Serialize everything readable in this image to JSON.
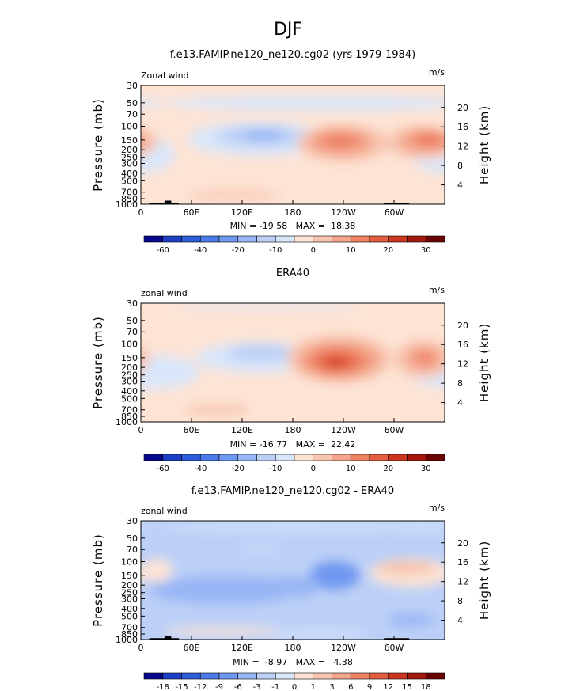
{
  "chart_data": {
    "figure_title": "DJF",
    "palettes": {
      "full": [
        "#08088a",
        "#1c3fc4",
        "#2e5ddb",
        "#4a7be8",
        "#6f98f0",
        "#98b6f5",
        "#bcd0f7",
        "#d9e6fa",
        "#fde4d5",
        "#f8c6b0",
        "#f4a68c",
        "#ee8263",
        "#e35e3e",
        "#cc3620",
        "#a4180e",
        "#6a0404"
      ],
      "diff": [
        "#08088a",
        "#1c3fc4",
        "#2e5ddb",
        "#4a7be8",
        "#6f98f0",
        "#98b6f5",
        "#bcd0f7",
        "#d9e6fa",
        "#fde4d5",
        "#f8c6b0",
        "#f4a68c",
        "#ee8263",
        "#e35e3e",
        "#cc3620",
        "#a4180e",
        "#6a0404"
      ]
    },
    "panels": [
      {
        "type": "heatmap",
        "title": "f.e13.FAMIP.ne120_ne120.cg02 (yrs 1979-1984)",
        "left_label": "Zonal wind",
        "units": "m/s",
        "ylabel": "Pressure (mb)",
        "y2label": "Height (km)",
        "x_ticks": [
          "0",
          "60E",
          "120E",
          "180",
          "120W",
          "60W"
        ],
        "x_tick_values": [
          0,
          60,
          120,
          180,
          240,
          300
        ],
        "xlim": [
          0,
          360
        ],
        "y_ticks": [
          "30",
          "50",
          "70",
          "100",
          "150",
          "200",
          "250",
          "300",
          "400",
          "500",
          "700",
          "850",
          "1000"
        ],
        "y_tick_values": [
          30,
          50,
          70,
          100,
          150,
          200,
          250,
          300,
          400,
          500,
          700,
          850,
          1000
        ],
        "ylim": [
          30,
          1000
        ],
        "height_ticks": [
          "20",
          "16",
          "12",
          "8",
          "4"
        ],
        "height_tick_values": [
          20,
          16,
          12,
          8,
          4
        ],
        "stats": "MIN = -19.58   MAX =  18.38",
        "min": -19.58,
        "max": 18.38,
        "colorbar_labels": [
          "-60",
          "-40",
          "-20",
          "-10",
          "0",
          "10",
          "20",
          "30"
        ],
        "colorbar_label_at": [
          1,
          3,
          5,
          7,
          9,
          11,
          13,
          15
        ],
        "palette": "full",
        "background_level": 8,
        "features": [
          {
            "lon": 0,
            "p": 230,
            "rlon": 40,
            "rlogp": 0.55,
            "level": 7
          },
          {
            "lon": 140,
            "p": 145,
            "rlon": 85,
            "rlogp": 0.5,
            "level": 7
          },
          {
            "lon": 142,
            "p": 135,
            "rlon": 52,
            "rlogp": 0.3,
            "level": 6
          },
          {
            "lon": 145,
            "p": 130,
            "rlon": 26,
            "rlogp": 0.16,
            "level": 5
          },
          {
            "lon": 210,
            "p": 50,
            "rlon": 180,
            "rlogp": 0.22,
            "level": 7
          },
          {
            "lon": 240,
            "p": 165,
            "rlon": 55,
            "rlogp": 0.55,
            "level": 9
          },
          {
            "lon": 237,
            "p": 160,
            "rlon": 40,
            "rlogp": 0.4,
            "level": 10
          },
          {
            "lon": 236,
            "p": 155,
            "rlon": 25,
            "rlogp": 0.22,
            "level": 11
          },
          {
            "lon": 335,
            "p": 160,
            "rlon": 45,
            "rlogp": 0.5,
            "level": 9
          },
          {
            "lon": 337,
            "p": 155,
            "rlon": 32,
            "rlogp": 0.35,
            "level": 10
          },
          {
            "lon": 340,
            "p": 150,
            "rlon": 20,
            "rlogp": 0.2,
            "level": 11
          },
          {
            "lon": 344,
            "p": 150,
            "rlon": 8,
            "rlogp": 0.08,
            "level": 12
          },
          {
            "lon": 110,
            "p": 760,
            "rlon": 55,
            "rlogp": 0.12,
            "level": 9
          }
        ],
        "topography": [
          {
            "lon0": 10,
            "lon1": 45,
            "p": 960
          },
          {
            "lon0": 28,
            "lon1": 36,
            "p": 900
          },
          {
            "lon0": 288,
            "lon1": 318,
            "p": 960
          }
        ]
      },
      {
        "type": "heatmap",
        "title": "ERA40",
        "left_label": "zonal wind",
        "units": "m/s",
        "ylabel": "Pressure (mb)",
        "y2label": "Height (km)",
        "x_ticks": [
          "0",
          "60E",
          "120E",
          "180",
          "120W",
          "60W"
        ],
        "x_tick_values": [
          0,
          60,
          120,
          180,
          240,
          300
        ],
        "xlim": [
          0,
          360
        ],
        "y_ticks": [
          "30",
          "50",
          "70",
          "100",
          "150",
          "200",
          "250",
          "300",
          "400",
          "500",
          "700",
          "850",
          "1000"
        ],
        "y_tick_values": [
          30,
          50,
          70,
          100,
          150,
          200,
          250,
          300,
          400,
          500,
          700,
          850,
          1000
        ],
        "ylim": [
          30,
          1000
        ],
        "height_ticks": [
          "20",
          "16",
          "12",
          "8",
          "4"
        ],
        "height_tick_values": [
          20,
          16,
          12,
          8,
          4
        ],
        "stats": "MIN = -16.77   MAX =  22.42",
        "min": -16.77,
        "max": 22.42,
        "colorbar_labels": [
          "-60",
          "-40",
          "-20",
          "-10",
          "0",
          "10",
          "20",
          "30"
        ],
        "colorbar_label_at": [
          1,
          3,
          5,
          7,
          9,
          11,
          13,
          15
        ],
        "palette": "full",
        "background_level": 8,
        "features": [
          {
            "lon": 15,
            "p": 230,
            "rlon": 55,
            "rlogp": 0.5,
            "level": 7
          },
          {
            "lon": 140,
            "p": 150,
            "rlon": 75,
            "rlogp": 0.45,
            "level": 7
          },
          {
            "lon": 142,
            "p": 130,
            "rlon": 40,
            "rlogp": 0.25,
            "level": 6
          },
          {
            "lon": 150,
            "p": 32,
            "rlon": 110,
            "rlogp": 0.08,
            "level": 7
          },
          {
            "lon": 235,
            "p": 155,
            "rlon": 62,
            "rlogp": 0.72,
            "level": 9
          },
          {
            "lon": 235,
            "p": 160,
            "rlon": 50,
            "rlogp": 0.55,
            "level": 10
          },
          {
            "lon": 233,
            "p": 165,
            "rlon": 36,
            "rlogp": 0.4,
            "level": 11
          },
          {
            "lon": 232,
            "p": 170,
            "rlon": 22,
            "rlogp": 0.25,
            "level": 12
          },
          {
            "lon": 231,
            "p": 172,
            "rlon": 9,
            "rlogp": 0.12,
            "level": 13
          },
          {
            "lon": 335,
            "p": 155,
            "rlon": 35,
            "rlogp": 0.55,
            "level": 9
          },
          {
            "lon": 335,
            "p": 155,
            "rlon": 22,
            "rlogp": 0.38,
            "level": 10
          },
          {
            "lon": 337,
            "p": 150,
            "rlon": 10,
            "rlogp": 0.18,
            "level": 11
          },
          {
            "lon": 90,
            "p": 700,
            "rlon": 40,
            "rlogp": 0.15,
            "level": 9
          }
        ],
        "topography": []
      },
      {
        "type": "heatmap",
        "title": "f.e13.FAMIP.ne120_ne120.cg02 - ERA40",
        "left_label": "zonal wind",
        "units": "m/s",
        "ylabel": "Pressure (mb)",
        "y2label": "Height (km)",
        "x_ticks": [
          "0",
          "60E",
          "120E",
          "180",
          "120W",
          "60W"
        ],
        "x_tick_values": [
          0,
          60,
          120,
          180,
          240,
          300
        ],
        "xlim": [
          0,
          360
        ],
        "y_ticks": [
          "30",
          "50",
          "70",
          "100",
          "150",
          "200",
          "250",
          "300",
          "400",
          "500",
          "700",
          "850",
          "1000"
        ],
        "y_tick_values": [
          30,
          50,
          70,
          100,
          150,
          200,
          250,
          300,
          400,
          500,
          700,
          850,
          1000
        ],
        "ylim": [
          30,
          1000
        ],
        "height_ticks": [
          "20",
          "16",
          "12",
          "8",
          "4"
        ],
        "height_tick_values": [
          20,
          16,
          12,
          8,
          4
        ],
        "stats": "MIN =  -8.97   MAX =   4.38",
        "min": -8.97,
        "max": 4.38,
        "colorbar_labels": [
          "-18",
          "-15",
          "-12",
          "-9",
          "-6",
          "-3",
          "-1",
          "0",
          "1",
          "3",
          "6",
          "9",
          "12",
          "15",
          "18"
        ],
        "colorbar_label_at": [
          1,
          2,
          3,
          4,
          5,
          6,
          7,
          8,
          9,
          10,
          11,
          12,
          13,
          14,
          15
        ],
        "palette": "diff",
        "background_level": 6,
        "features": [
          {
            "lon": 180,
            "p": 36,
            "rlon": 160,
            "rlogp": 0.1,
            "level": 7
          },
          {
            "lon": 330,
            "p": 36,
            "rlon": 40,
            "rlogp": 0.1,
            "level": 7
          },
          {
            "lon": 20,
            "p": 130,
            "rlon": 18,
            "rlogp": 0.35,
            "level": 8
          },
          {
            "lon": 100,
            "p": 230,
            "rlon": 90,
            "rlogp": 0.42,
            "level": 5
          },
          {
            "lon": 230,
            "p": 150,
            "rlon": 30,
            "rlogp": 0.42,
            "level": 4
          },
          {
            "lon": 175,
            "p": 210,
            "rlon": 40,
            "rlogp": 0.3,
            "level": 5
          },
          {
            "lon": 320,
            "p": 140,
            "rlon": 50,
            "rlogp": 0.42,
            "level": 8
          },
          {
            "lon": 315,
            "p": 120,
            "rlon": 35,
            "rlogp": 0.22,
            "level": 9
          },
          {
            "lon": 140,
            "p": 70,
            "rlon": 22,
            "rlogp": 0.06,
            "level": 7
          },
          {
            "lon": 95,
            "p": 780,
            "rlon": 70,
            "rlogp": 0.12,
            "level": 8
          },
          {
            "lon": 210,
            "p": 850,
            "rlon": 60,
            "rlogp": 0.1,
            "level": 7
          },
          {
            "lon": 320,
            "p": 560,
            "rlon": 28,
            "rlogp": 0.18,
            "level": 5
          }
        ],
        "topography": [
          {
            "lon0": 10,
            "lon1": 45,
            "p": 960
          },
          {
            "lon0": 28,
            "lon1": 36,
            "p": 900
          },
          {
            "lon0": 288,
            "lon1": 318,
            "p": 960
          }
        ]
      }
    ]
  }
}
